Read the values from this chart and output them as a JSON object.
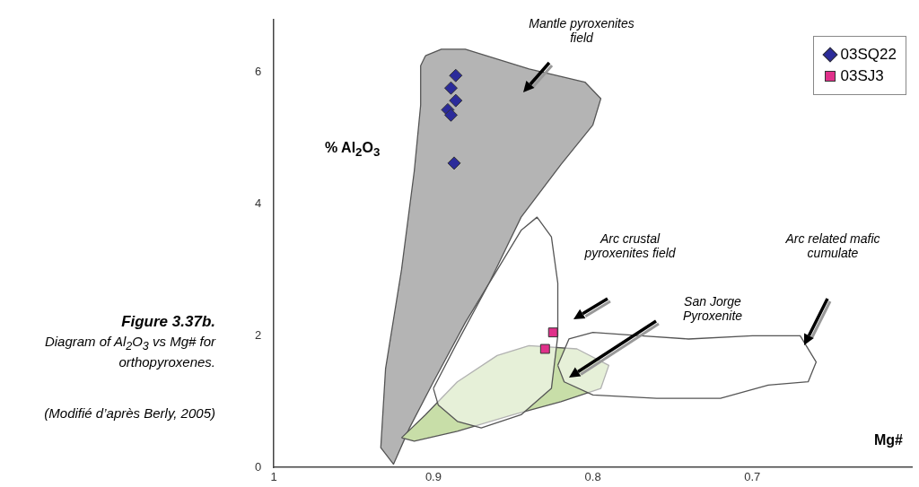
{
  "chart_data": {
    "type": "scatter",
    "title": "Figure 3.37b.",
    "subtitle": "Diagram of Al$_{2}$O$_{3}$ vs Mg#  for orthopyroxenes.",
    "xlabel": "Mg#",
    "ylabel": "% Al$_{2}$O$_{3}$",
    "xlim": [
      1,
      0.6
    ],
    "xticks": [
      1,
      0.9,
      0.8,
      0.7
    ],
    "ylim": [
      0,
      6.8
    ],
    "yticks": [
      0,
      2,
      4,
      6
    ],
    "grid": false,
    "legend": "top right",
    "series": [
      {
        "type": "area",
        "color": "#b4b4b4",
        "marker": "none",
        "x": [
          0.905,
          0.895,
          0.88,
          0.84,
          0.805,
          0.795,
          0.8,
          0.82,
          0.845,
          0.865,
          0.88,
          0.9,
          0.915,
          0.925,
          0.933,
          0.93,
          0.92,
          0.912,
          0.908,
          0.908
        ],
        "values": [
          6.25,
          6.35,
          6.35,
          6.05,
          5.85,
          5.6,
          5.2,
          4.6,
          3.8,
          2.8,
          2.2,
          1.3,
          0.6,
          0.05,
          0.3,
          1.5,
          3.0,
          4.5,
          5.5,
          6.1
        ]
      },
      {
        "type": "area",
        "color": "#c8dea8",
        "marker": "none",
        "x": [
          0.92,
          0.905,
          0.885,
          0.86,
          0.84,
          0.81,
          0.79,
          0.795,
          0.82,
          0.85,
          0.885,
          0.912
        ],
        "values": [
          0.45,
          0.8,
          1.3,
          1.7,
          1.85,
          1.8,
          1.55,
          1.2,
          1.0,
          0.8,
          0.55,
          0.4
        ]
      },
      {
        "type": "area",
        "color": "#ffffff",
        "marker": "none",
        "x": [
          0.9,
          0.885,
          0.865,
          0.845,
          0.835,
          0.826,
          0.822,
          0.822,
          0.826,
          0.845,
          0.87,
          0.885,
          0.897
        ],
        "values": [
          1.2,
          1.9,
          2.8,
          3.6,
          3.8,
          3.5,
          2.8,
          2.0,
          1.2,
          0.8,
          0.6,
          0.7,
          0.95
        ]
      },
      {
        "type": "area",
        "color": "#ffffff",
        "marker": "none",
        "x": [
          0.822,
          0.815,
          0.8,
          0.77,
          0.74,
          0.7,
          0.67,
          0.66,
          0.665,
          0.69,
          0.72,
          0.76,
          0.8,
          0.818
        ],
        "values": [
          1.55,
          1.95,
          2.05,
          2.0,
          1.95,
          2.0,
          2.0,
          1.6,
          1.3,
          1.25,
          1.05,
          1.05,
          1.1,
          1.3
        ]
      },
      {
        "name": "03SQ22",
        "color": "#2b2b9a",
        "marker": "diamond",
        "x": [
          0.886,
          0.889,
          0.886,
          0.891,
          0.889,
          0.887
        ],
        "values": [
          5.95,
          5.76,
          5.57,
          5.43,
          5.35,
          4.62
        ]
      },
      {
        "name": "03SJ3",
        "color": "#e0308a",
        "marker": "square",
        "x": [
          0.825,
          0.83
        ],
        "values": [
          2.05,
          1.8
        ]
      }
    ],
    "annotations": [
      "Mantle pyroxenites field",
      "Arc crustal pyroxenites field",
      "San Jorge Pyroxenite",
      "Arc related mafic cumulate",
      "(Modifié d’après Berly, 2005)"
    ]
  }
}
